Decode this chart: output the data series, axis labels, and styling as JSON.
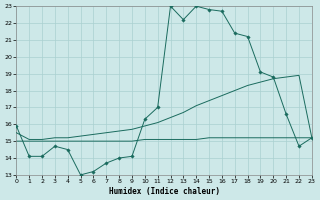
{
  "xlabel": "Humidex (Indice chaleur)",
  "xlim": [
    0,
    23
  ],
  "ylim": [
    13,
    23
  ],
  "yticks": [
    13,
    14,
    15,
    16,
    17,
    18,
    19,
    20,
    21,
    22,
    23
  ],
  "xticks": [
    0,
    1,
    2,
    3,
    4,
    5,
    6,
    7,
    8,
    9,
    10,
    11,
    12,
    13,
    14,
    15,
    16,
    17,
    18,
    19,
    20,
    21,
    22,
    23
  ],
  "bg_color": "#cde8e8",
  "grid_color": "#aad0d0",
  "line_color": "#1a6b5e",
  "curve1_x": [
    0,
    1,
    2,
    3,
    4,
    5,
    6,
    7,
    8,
    9,
    10,
    11,
    12,
    13,
    14,
    15,
    16,
    17,
    18,
    19,
    20,
    21,
    22,
    23
  ],
  "curve1_y": [
    15.9,
    14.1,
    14.1,
    14.7,
    14.5,
    13.0,
    13.2,
    13.7,
    14.0,
    14.1,
    16.3,
    17.0,
    23.0,
    22.2,
    23.0,
    22.8,
    22.7,
    21.4,
    21.2,
    19.1,
    18.8,
    16.6,
    14.7,
    15.2
  ],
  "curve2_x": [
    0,
    1,
    2,
    3,
    4,
    5,
    6,
    7,
    8,
    9,
    10,
    11,
    12,
    13,
    14,
    15,
    16,
    17,
    18,
    19,
    20,
    21,
    22,
    23
  ],
  "curve2_y": [
    15.5,
    15.1,
    15.1,
    15.2,
    15.2,
    15.3,
    15.4,
    15.5,
    15.6,
    15.7,
    15.9,
    16.1,
    16.4,
    16.7,
    17.1,
    17.4,
    17.7,
    18.0,
    18.3,
    18.5,
    18.7,
    18.8,
    18.9,
    15.2
  ],
  "curve3_x": [
    0,
    1,
    2,
    3,
    4,
    5,
    6,
    7,
    8,
    9,
    10,
    11,
    12,
    13,
    14,
    15,
    16,
    17,
    18,
    19,
    20,
    21,
    22,
    23
  ],
  "curve3_y": [
    15.0,
    15.0,
    15.0,
    15.0,
    15.0,
    15.0,
    15.0,
    15.0,
    15.0,
    15.0,
    15.1,
    15.1,
    15.1,
    15.1,
    15.1,
    15.2,
    15.2,
    15.2,
    15.2,
    15.2,
    15.2,
    15.2,
    15.2,
    15.2
  ]
}
